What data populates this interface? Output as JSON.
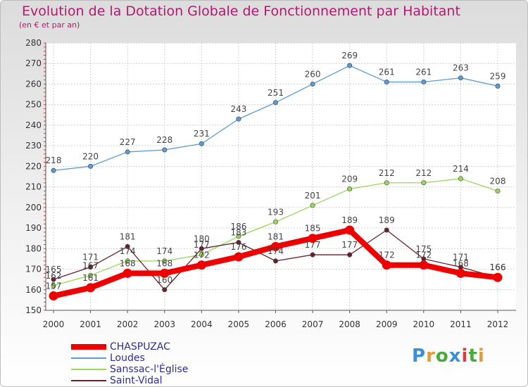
{
  "header": {
    "title": "Evolution de la Dotation Globale de Fonctionnement par Habitant",
    "subtitle": "(en € et par an)"
  },
  "logo": {
    "text": "Proxiti",
    "colors": [
      "#3a8fd6",
      "#e89a2c",
      "#4aa83c",
      "#3a8fd6",
      "#e03b3b",
      "#4aa83c",
      "#e89a2c"
    ]
  },
  "chart_data": {
    "type": "line",
    "x": [
      "2000",
      "2001",
      "2002",
      "2003",
      "2004",
      "2005",
      "2006",
      "2007",
      "2008",
      "2009",
      "2010",
      "2011",
      "2012"
    ],
    "ylim": [
      150,
      280
    ],
    "yticks": [
      150,
      160,
      170,
      180,
      190,
      200,
      210,
      220,
      230,
      240,
      250,
      260,
      270,
      280
    ],
    "grid": true,
    "legend_position": "bottom-left",
    "series": [
      {
        "name": "CHASPUZAC",
        "color": "#ee0000",
        "values": [
          157,
          161,
          168,
          168,
          172,
          176,
          181,
          185,
          189,
          172,
          172,
          168,
          166
        ]
      },
      {
        "name": "Loudes",
        "color": "#5b9bd5",
        "values": [
          218,
          220,
          227,
          228,
          231,
          243,
          251,
          260,
          269,
          261,
          261,
          263,
          259
        ]
      },
      {
        "name": "Sanssac-l'Église",
        "color": "#99d65a",
        "values": [
          162,
          167,
          174,
          174,
          177,
          186,
          193,
          201,
          209,
          212,
          212,
          214,
          208
        ]
      },
      {
        "name": "Saint-Vidal",
        "color": "#6b1f2a",
        "values": [
          165,
          171,
          181,
          160,
          180,
          183,
          174,
          177,
          177,
          189,
          175,
          171,
          166
        ]
      }
    ]
  }
}
